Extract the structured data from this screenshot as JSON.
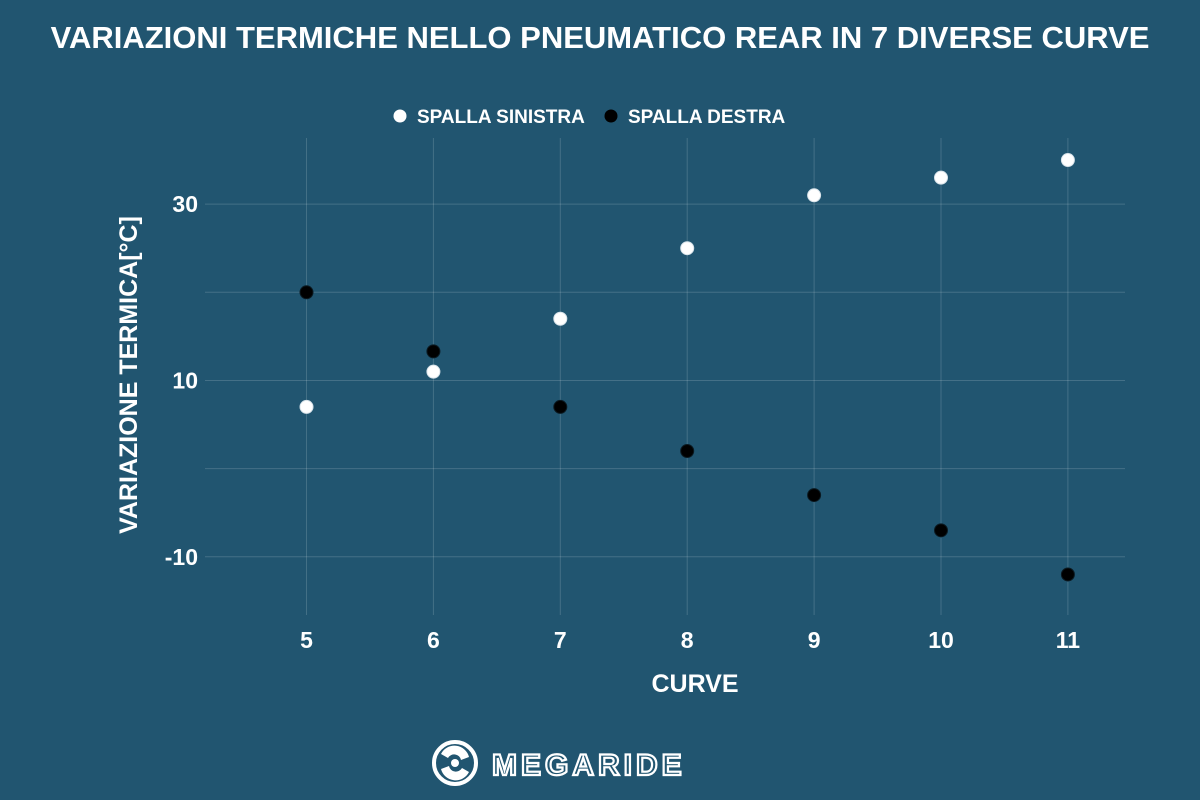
{
  "chart_data": {
    "type": "scatter",
    "title": "VARIAZIONI TERMICHE NELLO PNEUMATICO REAR IN 7 DIVERSE CURVE",
    "xlabel": "CURVE",
    "ylabel": "VARIAZIONE TERMICA[°C]",
    "x": [
      5,
      6,
      7,
      8,
      9,
      10,
      11
    ],
    "xlim": [
      4.2,
      11.45
    ],
    "ylim": [
      -16.6,
      37.5
    ],
    "yticks": [
      -10,
      10,
      30
    ],
    "grid": true,
    "legend_position": "top-center",
    "series": [
      {
        "name": "SPALLA SINISTRA",
        "color": "#ffffff",
        "values": [
          7,
          11,
          17,
          25,
          31,
          33,
          35
        ]
      },
      {
        "name": "SPALLA DESTRA",
        "color": "#000000",
        "values": [
          20,
          13.3,
          7,
          2,
          -3,
          -7,
          -12
        ]
      }
    ]
  },
  "brand": {
    "logo_text": "MEGARIDE",
    "logo_icon": "megaride-swirl-icon"
  },
  "colors": {
    "background": "#215570"
  }
}
